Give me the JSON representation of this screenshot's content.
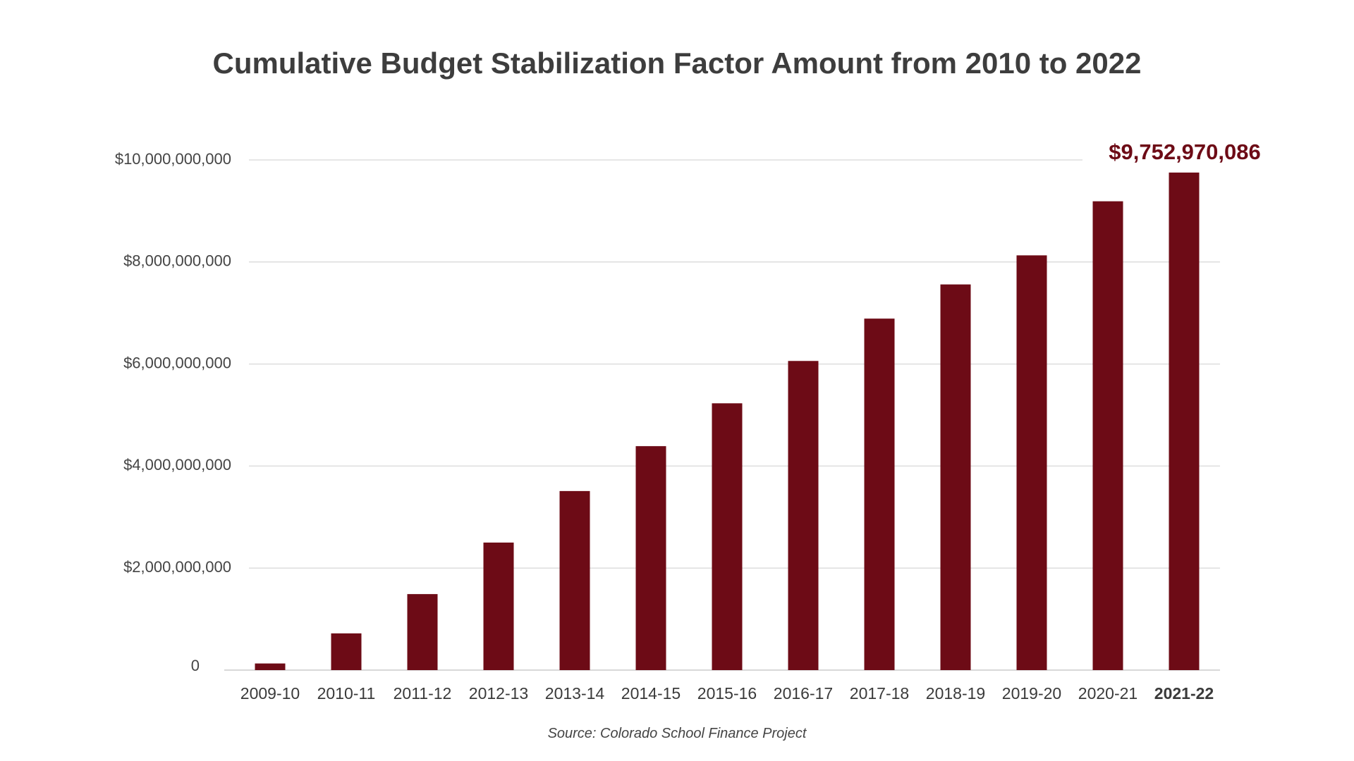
{
  "chart_data": {
    "type": "bar",
    "title": "Cumulative Budget Stabilization Factor Amount from 2010 to 2022",
    "xlabel": "",
    "ylabel": "",
    "categories": [
      "2009-10",
      "2010-11",
      "2011-12",
      "2012-13",
      "2013-14",
      "2014-15",
      "2015-16",
      "2016-17",
      "2017-18",
      "2018-19",
      "2019-20",
      "2020-21",
      "2021-22"
    ],
    "values": [
      130000000,
      720000000,
      1490000000,
      2500000000,
      3510000000,
      4390000000,
      5230000000,
      6060000000,
      6890000000,
      7560000000,
      8130000000,
      9190000000,
      9752970086
    ],
    "ylim": [
      0,
      10000000000
    ],
    "y_ticks": [
      {
        "value": 0,
        "label": "0"
      },
      {
        "value": 2000000000,
        "label": "$2,000,000,000"
      },
      {
        "value": 4000000000,
        "label": "$4,000,000,000"
      },
      {
        "value": 6000000000,
        "label": "$6,000,000,000"
      },
      {
        "value": 8000000000,
        "label": "$8,000,000,000"
      },
      {
        "value": 10000000000,
        "label": "$10,000,000,000"
      }
    ],
    "grid": true,
    "highlight_index": 12,
    "data_labels": [
      {
        "index": 12,
        "text": "$9,752,970,086"
      }
    ],
    "source": "Source: Colorado School Finance Project",
    "colors": {
      "bar": "#6d0b16",
      "highlight_text": "#6d0b16",
      "grid": "#dddddd",
      "axis": "#cccccc",
      "title": "#3d3d3d"
    }
  }
}
